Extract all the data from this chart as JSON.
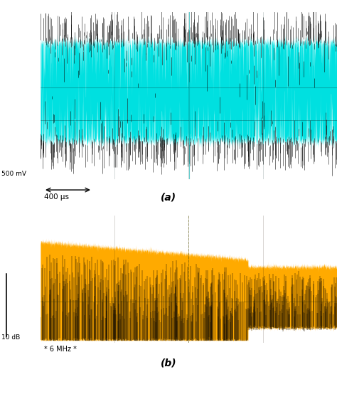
{
  "fig_width": 4.74,
  "fig_height": 5.61,
  "dpi": 100,
  "bg_color": "#ffffff",
  "panel_a": {
    "bg_color": "#000000",
    "signal_color": "#00e0e0",
    "label_scale": "500 mV",
    "label_time": "400 μs",
    "caption": "(a)",
    "cursor_color": "#007777",
    "grid_color": "#003333"
  },
  "panel_b": {
    "bg_color": "#000000",
    "signal_color": "#ffaa00",
    "label_scale": "10 dB",
    "label_freq": "6 MHz",
    "caption": "(b)",
    "cursor_color": "#666600",
    "grid_color": "#333300"
  }
}
